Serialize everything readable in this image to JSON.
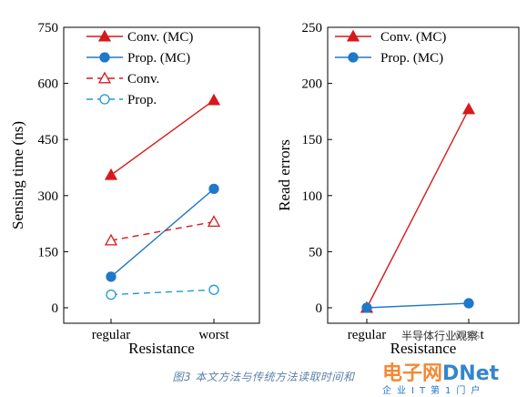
{
  "chart_data": [
    {
      "type": "line",
      "categories": [
        "regular",
        "worst"
      ],
      "xlabel": "Resistance",
      "ylabel": "Sensing time (ns)",
      "ylim": [
        0,
        750
      ],
      "yticks": [
        0,
        150,
        300,
        450,
        600,
        750
      ],
      "grid": false,
      "legend_position": "top-right",
      "series": [
        {
          "name": "Conv. (MC)",
          "values": [
            355,
            555
          ],
          "color": "#d7191c",
          "marker": "filled-triangle",
          "dash": "solid"
        },
        {
          "name": "Prop. (MC)",
          "values": [
            83,
            318
          ],
          "color": "#1f78c8",
          "marker": "filled-circle",
          "dash": "solid"
        },
        {
          "name": "Conv.",
          "values": [
            180,
            230
          ],
          "color": "#d7191c",
          "marker": "open-triangle",
          "dash": "dashed"
        },
        {
          "name": "Prop.",
          "values": [
            35,
            48
          ],
          "color": "#1f9bc8",
          "marker": "open-circle",
          "dash": "dashed"
        }
      ]
    },
    {
      "type": "line",
      "categories": [
        "regular",
        "worst"
      ],
      "xlabel": "Resistance",
      "ylabel": "Read errors",
      "ylim": [
        0,
        250
      ],
      "yticks": [
        0,
        50,
        100,
        150,
        200,
        250
      ],
      "grid": false,
      "legend_position": "top-left",
      "series": [
        {
          "name": "Conv. (MC)",
          "values": [
            0,
            177
          ],
          "color": "#d7191c",
          "marker": "filled-triangle",
          "dash": "solid"
        },
        {
          "name": "Prop. (MC)",
          "values": [
            0,
            4
          ],
          "color": "#1f78c8",
          "marker": "filled-circle",
          "dash": "solid"
        }
      ]
    }
  ],
  "caption": "图3  本文方法与传统方法读取时间和",
  "watermarks": {
    "wechat": "半导体行业观察",
    "logo_part1": "电子网",
    "logo_part2": "DNet",
    "logo_sub": "企业IT第1门户"
  }
}
